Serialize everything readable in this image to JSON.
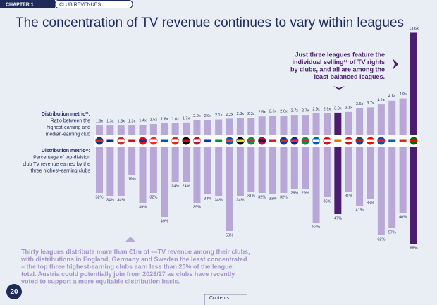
{
  "header": {
    "chapter": "CHAPTER 1",
    "section": "CLUB REVENUES"
  },
  "title": "The concentration of TV revenue continues to vary within leagues",
  "annotation": [
    "Just three leagues feature the",
    "individual selling¹¹ of TV rights",
    "by clubs, and all are among the",
    "least balanced leagues."
  ],
  "chart_data": {
    "type": "bar",
    "metric_labels": [
      [
        "Distribution metric¹¹:",
        "Ratio between the",
        "highest-earning and",
        "median-earning club"
      ],
      [
        "Distribution metric¹¹:",
        "Percentage of top-division",
        "club TV revenue earned by the",
        "three highest-earning clubs"
      ]
    ],
    "colors": [
      "#b9a7d8",
      "#b9a7d8",
      "#b9a7d8",
      "#b9a7d8",
      "#b9a7d8",
      "#b9a7d8",
      "#b9a7d8",
      "#b9a7d8",
      "#b9a7d8",
      "#b9a7d8",
      "#b9a7d8",
      "#b9a7d8",
      "#b9a7d8",
      "#b9a7d8",
      "#b9a7d8",
      "#b9a7d8",
      "#b9a7d8",
      "#b9a7d8",
      "#b9a7d8",
      "#b9a7d8",
      "#b9a7d8",
      "#b9a7d8",
      "#4a1d6f",
      "#b9a7d8",
      "#b9a7d8",
      "#b9a7d8",
      "#b9a7d8",
      "#b9a7d8",
      "#b9a7d8",
      "#4a1d6f"
    ],
    "series": [
      {
        "values": [
          1.3,
          1.3,
          1.3,
          1.3,
          1.4,
          1.5,
          1.6,
          1.6,
          1.7,
          2.0,
          2.0,
          2.1,
          2.2,
          2.3,
          2.3,
          2.5,
          2.6,
          2.6,
          2.7,
          2.7,
          2.9,
          2.9,
          3.0,
          3.1,
          3.6,
          3.7,
          4.1,
          4.6,
          4.9,
          13.6
        ],
        "value_labels": [
          "1.3x",
          "1.3x",
          "1.3x",
          "1.3x",
          "1.4x",
          "1.5x",
          "1.6x",
          "1.6x",
          "1.7x",
          "2.0x",
          "2.0x",
          "2.1x",
          "2.2x",
          "2.3x",
          "2.3x",
          "2.5x",
          "2.6x",
          "2.6x",
          "2.7x",
          "2.7x",
          "2.9x",
          "2.9x",
          "3.0x",
          "3.1x",
          "3.6x",
          "3.7x",
          "4.1x",
          "4.6x",
          "4.9x",
          "13.6x"
        ]
      },
      {
        "values": [
          32,
          34,
          34,
          19,
          39,
          32,
          49,
          24,
          24,
          39,
          33,
          34,
          59,
          34,
          31,
          32,
          33,
          32,
          29,
          29,
          53,
          35,
          47,
          31,
          41,
          36,
          62,
          57,
          46,
          68
        ],
        "value_labels": [
          "32%",
          "34%",
          "34%",
          "19%",
          "39%",
          "32%",
          "49%",
          "24%",
          "24%",
          "39%",
          "33%",
          "34%",
          "59%",
          "34%",
          "31%",
          "32%",
          "33%",
          "32%",
          "29%",
          "29%",
          "53%",
          "35%",
          "47%",
          "31%",
          "41%",
          "36%",
          "62%",
          "57%",
          "46%",
          "68%"
        ]
      }
    ]
  },
  "body": [
    "Thirty leagues distribute more than €1m of —TV revenue among their clubs,",
    "with distributions in England, Germany and Sweden the least concentrated",
    "– the top three highest-earning clubs earn less than 25% of the league",
    "total. Austria could potentially join from 2026/27 as clubs have recently",
    "voted to support a more equitable distribution basis."
  ],
  "footer": {
    "page": "20",
    "contents": "Contents"
  }
}
